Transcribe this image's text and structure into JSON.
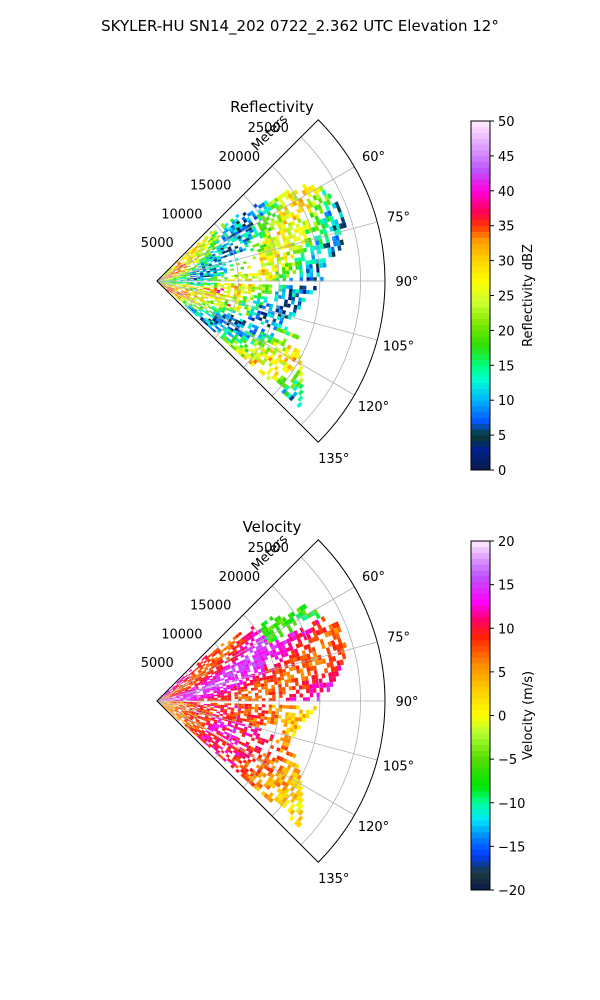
{
  "figure": {
    "suptitle": "SKYLER-HU  SN14_202  0722_2.362 UTC Elevation 12°"
  },
  "chart_data": [
    {
      "type": "heatmap",
      "projection": "polar-sector",
      "title": "Reflectivity",
      "range_axis_label": "Meters",
      "range_ticks": [
        5000,
        10000,
        15000,
        20000,
        25000
      ],
      "range_tick_labels": [
        "5000",
        "10000",
        "15000",
        "20000",
        "25000"
      ],
      "range_max": 28000,
      "azimuth_range_deg": [
        45,
        135
      ],
      "azimuth_ticks": [
        60,
        75,
        90,
        105,
        120,
        135
      ],
      "azimuth_tick_labels": [
        "60°",
        "75°",
        "90°",
        "105°",
        "120°",
        "135°"
      ],
      "grid": true,
      "colorbar": {
        "label": "Reflectivity dBZ",
        "vmin": 0,
        "vmax": 50,
        "ticks": [
          0,
          5,
          10,
          15,
          20,
          25,
          30,
          35,
          40,
          45,
          50
        ],
        "tick_labels": [
          "0",
          "5",
          "10",
          "15",
          "20",
          "25",
          "30",
          "35",
          "40",
          "45",
          "50"
        ],
        "colormap": "pyart_NWSRef"
      },
      "field_summary": {
        "dominant_range": [
          18,
          30
        ],
        "max_observed": 38
      }
    },
    {
      "type": "heatmap",
      "projection": "polar-sector",
      "title": "Velocity",
      "range_axis_label": "Meters",
      "range_ticks": [
        5000,
        10000,
        15000,
        20000,
        25000
      ],
      "range_tick_labels": [
        "5000",
        "10000",
        "15000",
        "20000",
        "25000"
      ],
      "range_max": 28000,
      "azimuth_range_deg": [
        45,
        135
      ],
      "azimuth_ticks": [
        60,
        75,
        90,
        105,
        120,
        135
      ],
      "azimuth_tick_labels": [
        "60°",
        "75°",
        "90°",
        "105°",
        "120°",
        "135°"
      ],
      "grid": true,
      "colorbar": {
        "label": "Velocity (m/s)",
        "vmin": -20,
        "vmax": 20,
        "ticks": [
          -20,
          -15,
          -10,
          -5,
          0,
          5,
          10,
          15,
          20
        ],
        "tick_labels": [
          "−20",
          "−15",
          "−10",
          "−5",
          "0",
          "5",
          "10",
          "15",
          "20"
        ],
        "colormap": "pyart_NWSVel"
      },
      "field_summary": {
        "north_of_90deg": [
          10,
          15
        ],
        "south_of_90deg": [
          0,
          10
        ]
      }
    }
  ]
}
